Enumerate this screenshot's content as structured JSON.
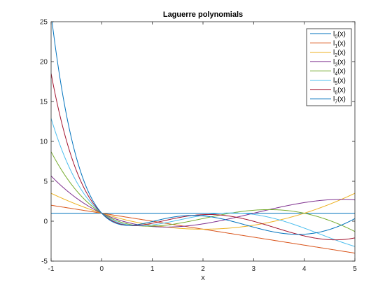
{
  "chart_data": {
    "type": "line",
    "title": "Laguerre polynomials",
    "xlabel": "x",
    "ylabel": "",
    "xlim": [
      -1,
      5
    ],
    "ylim": [
      -5,
      25
    ],
    "xticks": [
      "-1",
      "0",
      "1",
      "2",
      "3",
      "4",
      "5"
    ],
    "yticks": [
      "-5",
      "0",
      "5",
      "10",
      "15",
      "20",
      "25"
    ],
    "grid": false,
    "legend_position": "top-right",
    "series": [
      {
        "name": "l_0(x)",
        "legend_base": "l",
        "legend_sub": "0",
        "legend_suffix": "(x)",
        "color": "#0072BD",
        "coeffs": [
          1
        ]
      },
      {
        "name": "l_1(x)",
        "legend_base": "l",
        "legend_sub": "1",
        "legend_suffix": "(x)",
        "color": "#D95319",
        "coeffs": [
          1,
          -1
        ]
      },
      {
        "name": "l_2(x)",
        "legend_base": "l",
        "legend_sub": "2",
        "legend_suffix": "(x)",
        "color": "#EDB120",
        "coeffs": [
          1,
          -2,
          0.5
        ]
      },
      {
        "name": "l_3(x)",
        "legend_base": "l",
        "legend_sub": "3",
        "legend_suffix": "(x)",
        "color": "#7E2F8E",
        "coeffs": [
          1,
          -3,
          1.5,
          -0.1666667
        ]
      },
      {
        "name": "l_4(x)",
        "legend_base": "l",
        "legend_sub": "4",
        "legend_suffix": "(x)",
        "color": "#77AC30",
        "coeffs": [
          1,
          -4,
          3,
          -0.6666667,
          0.0416667
        ]
      },
      {
        "name": "l_5(x)",
        "legend_base": "l",
        "legend_sub": "5",
        "legend_suffix": "(x)",
        "color": "#4DBEEE",
        "coeffs": [
          1,
          -5,
          5,
          -1.6666667,
          0.2083333,
          -0.0083333
        ]
      },
      {
        "name": "l_6(x)",
        "legend_base": "l",
        "legend_sub": "6",
        "legend_suffix": "(x)",
        "color": "#A2142F",
        "coeffs": [
          1,
          -6,
          7.5,
          -3.3333333,
          0.625,
          -0.05,
          0.0013889
        ]
      },
      {
        "name": "l_7(x)",
        "legend_base": "l",
        "legend_sub": "7",
        "legend_suffix": "(x)",
        "color": "#0072BD",
        "coeffs": [
          1,
          -7,
          10.5,
          -5.8333333,
          1.4583333,
          -0.175,
          0.0097222,
          -0.0001984
        ]
      }
    ]
  }
}
